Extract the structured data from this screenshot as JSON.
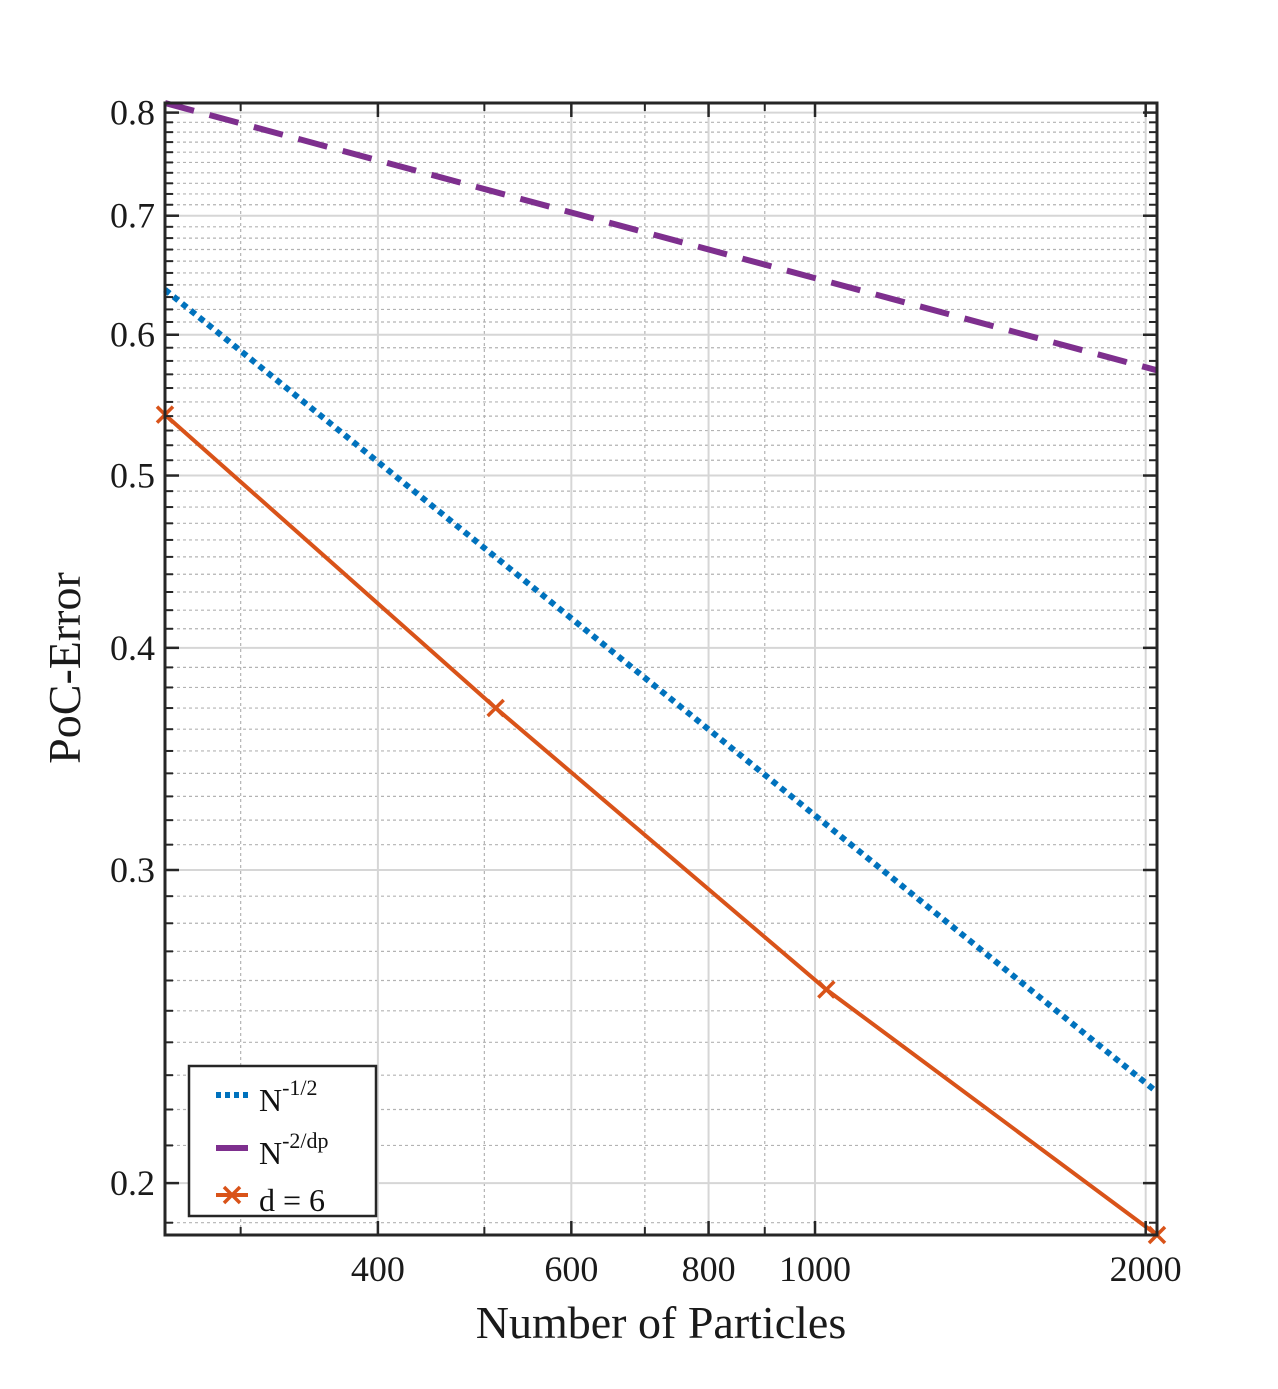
{
  "chart_data": {
    "type": "line",
    "xscale": "log",
    "yscale": "log",
    "xlabel": "Number of Particles",
    "ylabel": "PoC-Error",
    "xlim": [
      256,
      2048
    ],
    "ylim": [
      0.187,
      0.81
    ],
    "xticks": [
      400,
      600,
      800,
      1000,
      2000
    ],
    "xtick_labels": [
      "400",
      "600",
      "800",
      "1000",
      "2000"
    ],
    "yticks": [
      0.2,
      0.3,
      0.4,
      0.5,
      0.6,
      0.7,
      0.8
    ],
    "ytick_labels": [
      "0.2",
      "0.3",
      "0.4",
      "0.5",
      "0.6",
      "0.7",
      "0.8"
    ],
    "grid": true,
    "legend_position": "bottom-left",
    "series": [
      {
        "name": "N-1/2",
        "label_base": "N",
        "label_sup": "-1/2",
        "style": "dotted",
        "color": "#0072BD",
        "x": [
          256,
          2048
        ],
        "y": [
          0.636,
          0.225
        ]
      },
      {
        "name": "N-2/dp",
        "label_base": "N",
        "label_sup": "-2/dp",
        "style": "dashed",
        "color": "#7E2F8E",
        "x": [
          256,
          2048
        ],
        "y": [
          0.81,
          0.573
        ]
      },
      {
        "name": "d = 6",
        "label_base": "d = 6",
        "label_sup": "",
        "style": "solid",
        "marker": "x",
        "color": "#D95319",
        "x": [
          256,
          512,
          1024,
          2048
        ],
        "y": [
          0.541,
          0.37,
          0.257,
          0.187
        ]
      }
    ]
  }
}
